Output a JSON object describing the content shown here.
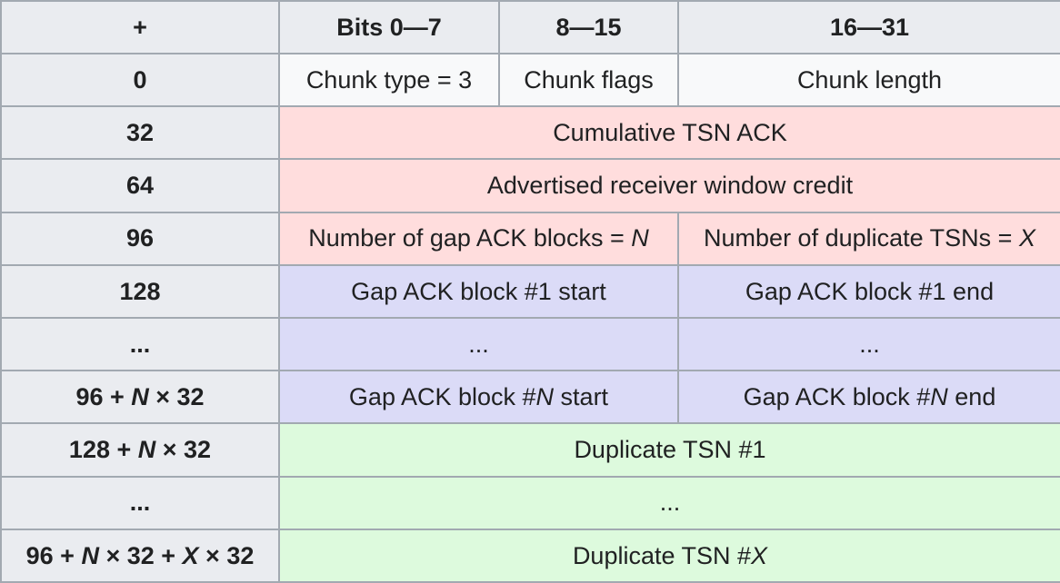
{
  "colors": {
    "header_bg": "#eaecf0",
    "cell_bg": "#f8f9fa",
    "pink": "#ffdddd",
    "lavender": "#dbdbf7",
    "green": "#ddfadd",
    "border": "#a2a9b1",
    "text": "#202122"
  },
  "header": {
    "plus": "+",
    "bits_0_7": "Bits 0—7",
    "bits_8_15": "8—15",
    "bits_16_31": "16—31"
  },
  "rows": [
    {
      "offset": [
        {
          "t": "0"
        }
      ],
      "cells": [
        {
          "text": [
            {
              "t": "Chunk type = 3"
            }
          ]
        },
        {
          "text": [
            {
              "t": "Chunk flags"
            }
          ]
        },
        {
          "text": [
            {
              "t": "Chunk length"
            }
          ]
        }
      ]
    },
    {
      "offset": [
        {
          "t": "32"
        }
      ],
      "cells": [
        {
          "text": [
            {
              "t": "Cumulative TSN ACK"
            }
          ]
        }
      ]
    },
    {
      "offset": [
        {
          "t": "64"
        }
      ],
      "cells": [
        {
          "text": [
            {
              "t": "Advertised receiver window credit"
            }
          ]
        }
      ]
    },
    {
      "offset": [
        {
          "t": "96"
        }
      ],
      "cells": [
        {
          "text": [
            {
              "t": "Number of gap ACK blocks = "
            },
            {
              "t": "N",
              "i": true
            }
          ]
        },
        {
          "text": [
            {
              "t": "Number of duplicate TSNs = "
            },
            {
              "t": "X",
              "i": true
            }
          ]
        }
      ]
    },
    {
      "offset": [
        {
          "t": "128"
        }
      ],
      "cells": [
        {
          "text": [
            {
              "t": "Gap ACK block #1 start"
            }
          ]
        },
        {
          "text": [
            {
              "t": "Gap ACK block #1 end"
            }
          ]
        }
      ]
    },
    {
      "offset": [
        {
          "t": "..."
        }
      ],
      "cells": [
        {
          "text": [
            {
              "t": "..."
            }
          ]
        },
        {
          "text": [
            {
              "t": "..."
            }
          ]
        }
      ]
    },
    {
      "offset": [
        {
          "t": "96 + "
        },
        {
          "t": "N",
          "i": true
        },
        {
          "t": " × 32"
        }
      ],
      "cells": [
        {
          "text": [
            {
              "t": "Gap ACK block #"
            },
            {
              "t": "N",
              "i": true
            },
            {
              "t": " start"
            }
          ]
        },
        {
          "text": [
            {
              "t": "Gap ACK block #"
            },
            {
              "t": "N",
              "i": true
            },
            {
              "t": " end"
            }
          ]
        }
      ]
    },
    {
      "offset": [
        {
          "t": "128 + "
        },
        {
          "t": "N",
          "i": true
        },
        {
          "t": " × 32"
        }
      ],
      "cells": [
        {
          "text": [
            {
              "t": "Duplicate TSN #1"
            }
          ]
        }
      ]
    },
    {
      "offset": [
        {
          "t": "..."
        }
      ],
      "cells": [
        {
          "text": [
            {
              "t": "..."
            }
          ]
        }
      ]
    },
    {
      "offset": [
        {
          "t": "96 + "
        },
        {
          "t": "N",
          "i": true
        },
        {
          "t": " × 32 + "
        },
        {
          "t": "X",
          "i": true
        },
        {
          "t": " × 32"
        }
      ],
      "cells": [
        {
          "text": [
            {
              "t": "Duplicate TSN #"
            },
            {
              "t": "X",
              "i": true
            }
          ]
        }
      ]
    }
  ]
}
